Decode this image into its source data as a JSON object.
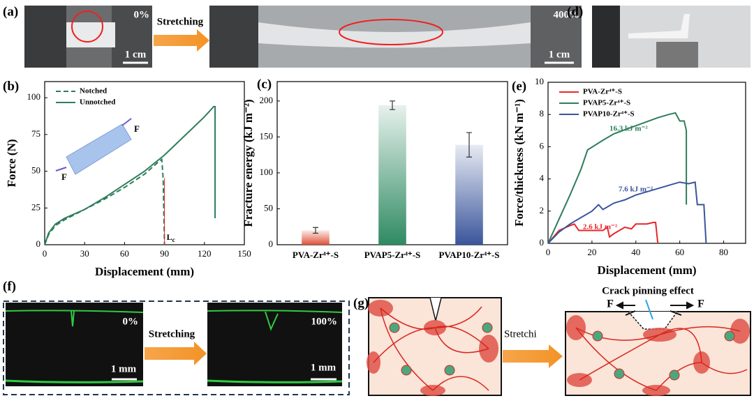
{
  "figure": {
    "a": {
      "label": "(a)",
      "strain_start": "0%",
      "arrow": "Stretching",
      "scale_1": "1 cm",
      "strain_end": "400%",
      "scale_2": "1 cm"
    },
    "d": {
      "label": "(d)"
    },
    "f": {
      "label": "(f)",
      "strain_start": "0%",
      "arrow": "Stretching",
      "scale_1": "1 mm",
      "strain_end": "100%",
      "scale_2": "1 mm"
    },
    "g": {
      "label": "(g)",
      "arrow": "Stretchi",
      "annotation": "Crack pinning effect",
      "force_left": "F",
      "force_right": "F"
    }
  },
  "chart_data": [
    {
      "type": "line",
      "panel_label": "(b)",
      "x_label": "Displacement (mm)",
      "y_label": "Force (N)",
      "xlim": [
        0,
        150
      ],
      "xticks": [
        0,
        30,
        60,
        90,
        120,
        150
      ],
      "ylim": [
        0,
        111
      ],
      "yticks": [
        0,
        25,
        50,
        75,
        100
      ],
      "legend": "upper left",
      "inset_labels": [
        "F",
        "F"
      ],
      "marker_label": {
        "main": "L",
        "sub": "c"
      },
      "series": [
        {
          "name": "Notched",
          "color": "#2e7d5b",
          "line_style": "dashed",
          "x": [
            0,
            3,
            8,
            15,
            30,
            45,
            60,
            75,
            85,
            88,
            89,
            90
          ],
          "values": [
            0,
            7,
            13,
            17,
            24,
            31,
            39,
            48,
            56,
            58,
            45,
            0
          ]
        },
        {
          "name": "Unnotched",
          "color": "#2e7d5b",
          "line_style": "solid",
          "x": [
            0,
            3,
            8,
            15,
            30,
            45,
            60,
            75,
            90,
            105,
            120,
            127,
            128,
            128
          ],
          "values": [
            0,
            8,
            14,
            18,
            24,
            32,
            41,
            50,
            61,
            74,
            87,
            94,
            94,
            18
          ]
        }
      ]
    },
    {
      "type": "bar",
      "panel_label": "(c)",
      "y_label": "Fracture energy (kJ m⁻²)",
      "categories": [
        "PVA-Zr⁴⁺-S",
        "PVAP5-Zr⁴⁺-S",
        "PVAP10-Zr⁴⁺-S"
      ],
      "values": [
        20,
        194,
        139
      ],
      "errors": [
        4,
        6,
        17
      ],
      "colors": [
        "#e0523a",
        "#2f8a62",
        "#3a559b"
      ],
      "ylim": [
        0,
        227
      ],
      "yticks": [
        0,
        50,
        100,
        150,
        200
      ]
    },
    {
      "type": "line",
      "panel_label": "(e)",
      "x_label": "Displacement (mm)",
      "y_label": "Force/thickness (kN m⁻¹)",
      "xlim": [
        0,
        90
      ],
      "xticks": [
        0,
        20,
        40,
        60,
        80
      ],
      "ylim": [
        0,
        10
      ],
      "yticks": [
        0,
        2,
        4,
        6,
        8,
        10
      ],
      "legend": "upper left",
      "series": [
        {
          "name": "PVA-Zr⁴⁺-S",
          "color": "#e8262b",
          "line_style": "solid",
          "x": [
            0,
            5,
            10,
            12,
            14,
            25,
            27,
            28,
            30,
            35,
            38,
            40,
            45,
            48,
            49,
            50
          ],
          "values": [
            0,
            0.8,
            1.1,
            1.2,
            0.8,
            0.8,
            1.0,
            0.4,
            0.6,
            1.0,
            0.9,
            1.2,
            1.2,
            1.3,
            1.3,
            0
          ]
        },
        {
          "name": "PVAP5-Zr⁴⁺-S",
          "color": "#2e7d5b",
          "line_style": "solid",
          "x": [
            0,
            5,
            10,
            15,
            18,
            25,
            30,
            40,
            50,
            55,
            58,
            60,
            62,
            63,
            63
          ],
          "values": [
            0,
            1.5,
            3,
            4.6,
            5.8,
            6.4,
            6.8,
            7.3,
            7.8,
            8.0,
            8.1,
            7.6,
            7.6,
            7.0,
            2.4
          ]
        },
        {
          "name": "PVAP10-Zr⁴⁺-S",
          "color": "#3a559b",
          "line_style": "solid",
          "x": [
            0,
            5,
            10,
            15,
            20,
            23,
            25,
            30,
            35,
            40,
            50,
            55,
            60,
            64,
            67,
            68,
            71,
            72
          ],
          "values": [
            0,
            0.7,
            1.2,
            1.6,
            2.0,
            2.4,
            2.1,
            2.5,
            2.7,
            3.0,
            3.4,
            3.6,
            3.8,
            3.7,
            3.8,
            2.4,
            2.4,
            0
          ]
        }
      ],
      "annotations": [
        {
          "text": "16.3 kJ m⁻²",
          "color": "#2e7d5b"
        },
        {
          "text": "7.6 kJ m⁻²",
          "color": "#3a559b"
        },
        {
          "text": "2.6 kJ m⁻²",
          "color": "#e8262b"
        }
      ]
    }
  ]
}
